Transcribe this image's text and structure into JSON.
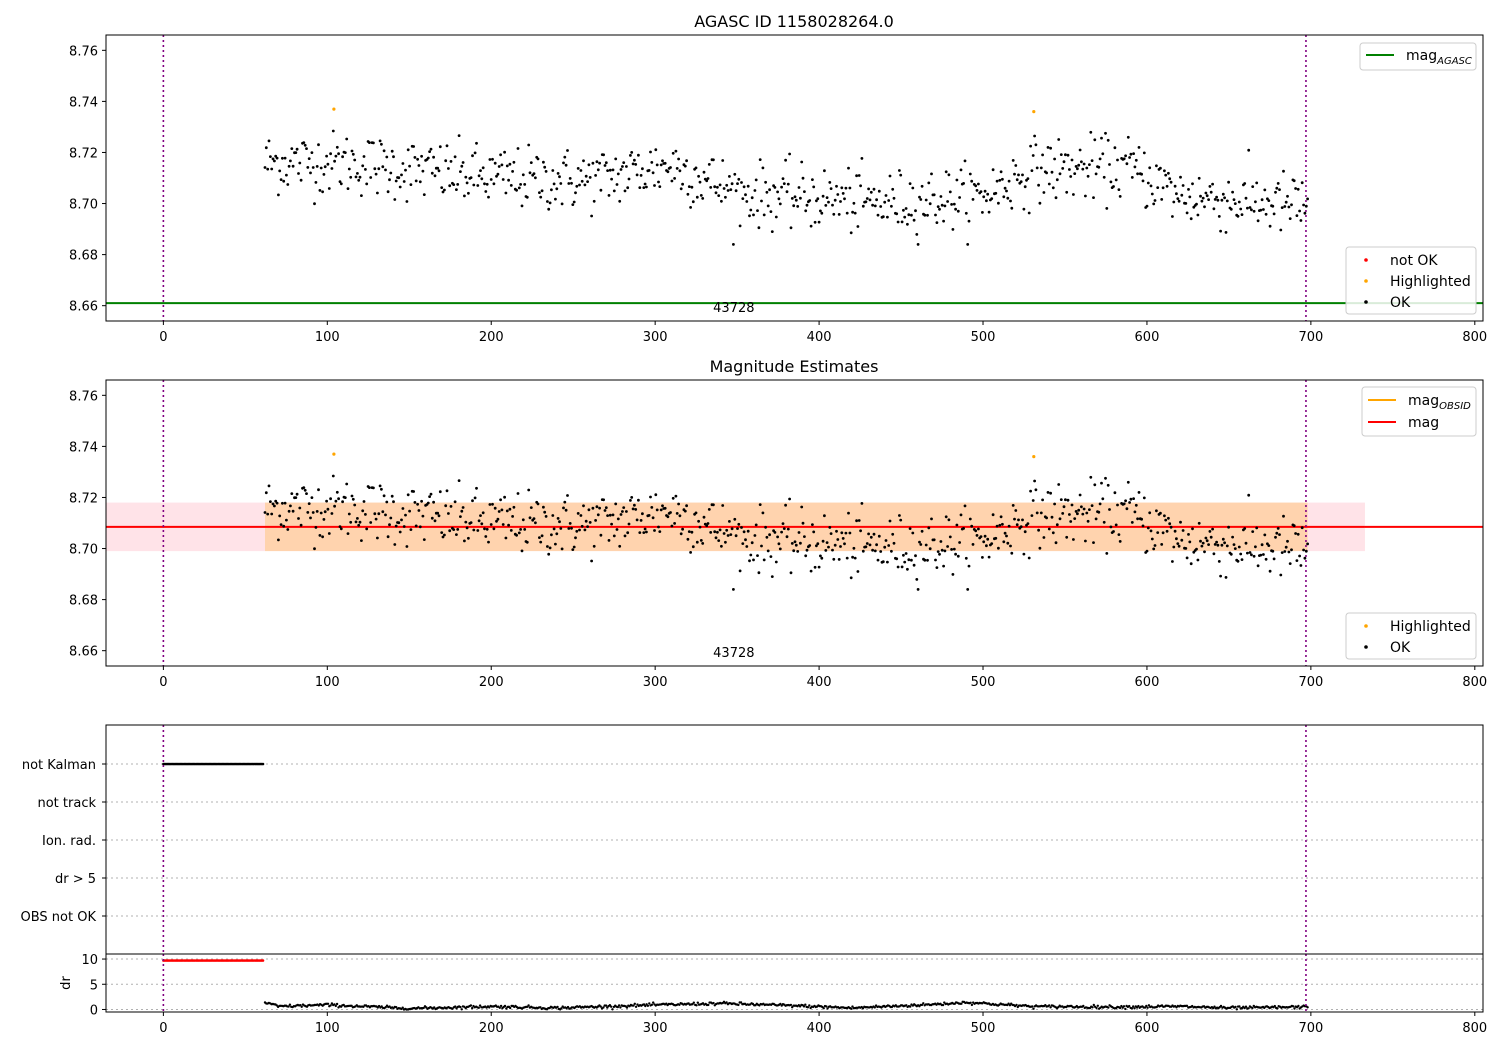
{
  "chart_data": [
    {
      "type": "scatter",
      "title": "AGASC ID 1158028264.0",
      "xlim": [
        -35,
        805
      ],
      "ylim": [
        8.654,
        8.766
      ],
      "x_ticks": [
        0,
        100,
        200,
        300,
        400,
        500,
        600,
        700,
        800
      ],
      "y_ticks": [
        8.66,
        8.68,
        8.7,
        8.72,
        8.74,
        8.76
      ],
      "y_tick_labels": [
        "8.66",
        "8.68",
        "8.70",
        "8.72",
        "8.74",
        "8.76"
      ],
      "obsid_label": "43728",
      "obsid_x": 348,
      "vlines": [
        0,
        697
      ],
      "hline": {
        "name": "mag_AGASC",
        "y": 8.661,
        "color": "#008000"
      },
      "legend_top": [
        {
          "label": "mag",
          "sub": "AGASC",
          "color": "#008000"
        }
      ],
      "legend_bottom": [
        {
          "label": "not OK",
          "color": "#ff0000"
        },
        {
          "label": "Highlighted",
          "color": "#ffa500"
        },
        {
          "label": "OK",
          "color": "#000000"
        }
      ],
      "highlighted_points": [
        [
          104,
          8.737
        ],
        [
          531,
          8.736
        ]
      ],
      "ok_series": {
        "x_start": 62,
        "x_end": 698,
        "n": 780,
        "trend": [
          [
            62,
            8.716
          ],
          [
            110,
            8.716
          ],
          [
            200,
            8.71
          ],
          [
            260,
            8.709
          ],
          [
            310,
            8.715
          ],
          [
            350,
            8.704
          ],
          [
            400,
            8.702
          ],
          [
            440,
            8.7
          ],
          [
            500,
            8.703
          ],
          [
            530,
            8.713
          ],
          [
            590,
            8.714
          ],
          [
            620,
            8.703
          ],
          [
            698,
            8.699
          ]
        ],
        "scatter": 0.0072
      }
    },
    {
      "type": "scatter",
      "title": "Magnitude Estimates",
      "xlim": [
        -35,
        805
      ],
      "ylim": [
        8.654,
        8.766
      ],
      "x_ticks": [
        0,
        100,
        200,
        300,
        400,
        500,
        600,
        700,
        800
      ],
      "y_ticks": [
        8.66,
        8.68,
        8.7,
        8.72,
        8.74,
        8.76
      ],
      "y_tick_labels": [
        "8.66",
        "8.68",
        "8.70",
        "8.72",
        "8.74",
        "8.76"
      ],
      "obsid_label": "43728",
      "obsid_x": 348,
      "vlines": [
        0,
        697
      ],
      "mag": {
        "y": 8.7085,
        "color": "#ff0000"
      },
      "band_mag": {
        "y_low": 8.699,
        "y_high": 8.718,
        "x_start": -35,
        "x_end": 733,
        "color": "#ffc0cb"
      },
      "band_obsid": {
        "y_low": 8.699,
        "y_high": 8.718,
        "x_start": 62,
        "x_end": 698,
        "color": "#ffa500"
      },
      "legend_top": [
        {
          "label": "mag",
          "sub": "OBSID",
          "color": "#ffa500"
        },
        {
          "label": "mag",
          "sub": "",
          "color": "#ff0000"
        }
      ],
      "legend_bottom": [
        {
          "label": "Highlighted",
          "color": "#ffa500"
        },
        {
          "label": "OK",
          "color": "#000000"
        }
      ],
      "highlighted_points": [
        [
          104,
          8.737
        ],
        [
          531,
          8.736
        ]
      ]
    },
    {
      "type": "scatter",
      "title": "",
      "xlim": [
        -35,
        805
      ],
      "x_ticks": [
        0,
        100,
        200,
        300,
        400,
        500,
        600,
        700,
        800
      ],
      "flag_categories": [
        "not Kalman",
        "not track",
        "Ion. rad.",
        "dr > 5",
        "OBS not OK"
      ],
      "flag_segments": [
        {
          "flag": "not Kalman",
          "x_start": 0,
          "x_end": 61
        }
      ],
      "vlines": [
        0,
        697
      ]
    },
    {
      "type": "scatter",
      "title": "",
      "ylabel": "dr",
      "xlim": [
        -35,
        805
      ],
      "ylim": [
        -0.5,
        11
      ],
      "y_ticks": [
        0,
        5,
        10
      ],
      "y_tick_labels": [
        "0",
        "5",
        "10"
      ],
      "x_ticks": [
        0,
        100,
        200,
        300,
        400,
        500,
        600,
        700,
        800
      ],
      "x_tick_labels": [
        "0",
        "100",
        "200",
        "300",
        "400",
        "500",
        "600",
        "700",
        "800"
      ],
      "vlines": [
        0,
        697
      ],
      "clipped_points": {
        "x_start": 0,
        "x_end": 61,
        "y": 9.7,
        "color": "#ff0000"
      },
      "dr_trend": [
        [
          62,
          1.4
        ],
        [
          70,
          0.6
        ],
        [
          100,
          0.9
        ],
        [
          150,
          0.2
        ],
        [
          200,
          0.6
        ],
        [
          240,
          0.3
        ],
        [
          300,
          0.9
        ],
        [
          340,
          1.2
        ],
        [
          380,
          0.8
        ],
        [
          420,
          0.3
        ],
        [
          470,
          1.0
        ],
        [
          490,
          1.4
        ],
        [
          530,
          0.6
        ],
        [
          580,
          0.5
        ],
        [
          620,
          0.6
        ],
        [
          650,
          0.3
        ],
        [
          698,
          0.5
        ]
      ]
    }
  ]
}
